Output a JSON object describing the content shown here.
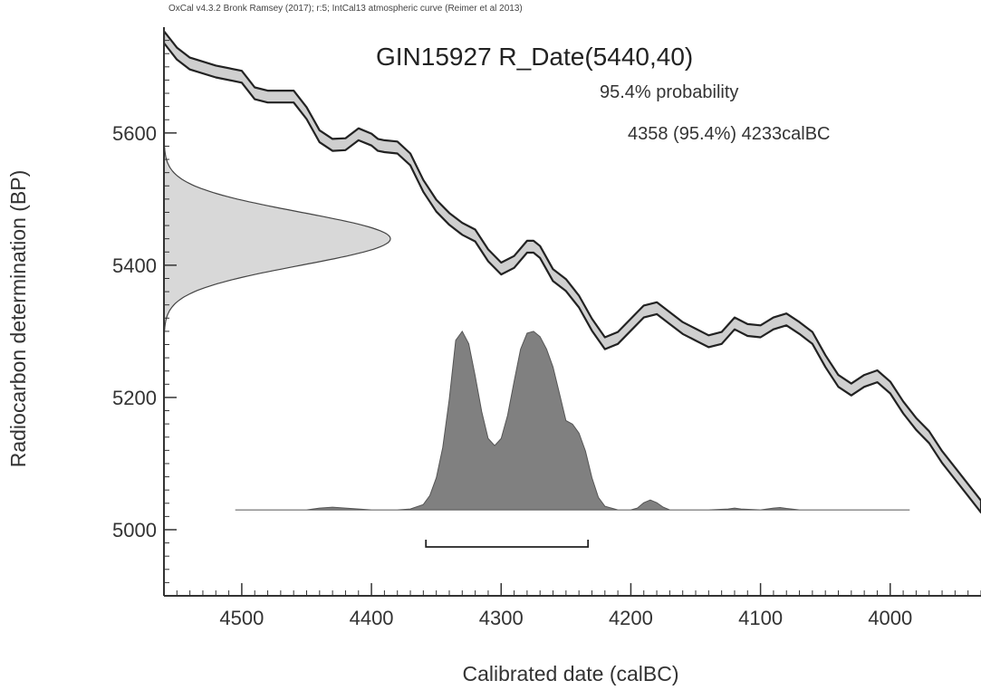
{
  "header": {
    "software_line": "OxCal v4.3.2 Bronk Ramsey (2017); r:5; IntCal13 atmospheric curve (Reimer et al 2013)"
  },
  "chart_data": {
    "type": "area",
    "title": "GIN15927 R_Date(5440,40)",
    "probability_label": "95.4% probability",
    "range_text": "4358 (95.4%) 4233calBC",
    "xlabel": "Calibrated date (calBC)",
    "ylabel": "Radiocarbon determination (BP)",
    "x_reversed": true,
    "xlim": [
      4560,
      3930
    ],
    "ylim": [
      4900,
      5760
    ],
    "x_ticks": [
      "4500",
      "4400",
      "4300",
      "4200",
      "4100",
      "4000"
    ],
    "y_ticks": [
      "5000",
      "5200",
      "5400",
      "5600"
    ],
    "calibration_curve": {
      "x": [
        4560,
        4550,
        4540,
        4520,
        4500,
        4490,
        4480,
        4460,
        4450,
        4440,
        4430,
        4420,
        4410,
        4400,
        4395,
        4390,
        4380,
        4370,
        4360,
        4350,
        4340,
        4330,
        4320,
        4310,
        4300,
        4290,
        4280,
        4275,
        4270,
        4260,
        4250,
        4240,
        4230,
        4220,
        4210,
        4200,
        4190,
        4180,
        4170,
        4160,
        4150,
        4140,
        4130,
        4120,
        4110,
        4100,
        4090,
        4080,
        4070,
        4060,
        4050,
        4040,
        4030,
        4020,
        4010,
        4000,
        3990,
        3980,
        3970,
        3960,
        3950,
        3940,
        3930
      ],
      "y": [
        5745,
        5720,
        5705,
        5693,
        5685,
        5660,
        5655,
        5655,
        5630,
        5595,
        5582,
        5583,
        5598,
        5590,
        5582,
        5580,
        5578,
        5560,
        5520,
        5490,
        5470,
        5455,
        5445,
        5415,
        5395,
        5405,
        5428,
        5428,
        5420,
        5385,
        5370,
        5345,
        5310,
        5282,
        5290,
        5310,
        5330,
        5335,
        5320,
        5305,
        5295,
        5285,
        5290,
        5312,
        5302,
        5300,
        5312,
        5318,
        5305,
        5290,
        5255,
        5225,
        5212,
        5225,
        5232,
        5215,
        5185,
        5160,
        5140,
        5110,
        5085,
        5060,
        5035
      ],
      "half_width": 9
    },
    "radiocarbon_distribution": {
      "mean": 5440,
      "sd": 40
    },
    "calibrated_distribution": {
      "x": [
        4505,
        4480,
        4450,
        4440,
        4430,
        4420,
        4400,
        4380,
        4370,
        4360,
        4355,
        4350,
        4345,
        4340,
        4335,
        4330,
        4325,
        4320,
        4315,
        4310,
        4305,
        4300,
        4295,
        4290,
        4285,
        4280,
        4275,
        4270,
        4265,
        4260,
        4255,
        4250,
        4245,
        4240,
        4235,
        4230,
        4225,
        4220,
        4210,
        4200,
        4195,
        4190,
        4185,
        4180,
        4175,
        4170,
        4160,
        4140,
        4125,
        4120,
        4115,
        4100,
        4090,
        4085,
        4080,
        4070,
        4050,
        4020,
        3985
      ],
      "p": [
        0,
        0,
        0,
        0.01,
        0.015,
        0.01,
        0,
        0,
        0.005,
        0.03,
        0.08,
        0.18,
        0.35,
        0.62,
        0.95,
        1.0,
        0.93,
        0.75,
        0.55,
        0.4,
        0.36,
        0.4,
        0.53,
        0.72,
        0.9,
        0.99,
        1.0,
        0.97,
        0.9,
        0.8,
        0.65,
        0.5,
        0.48,
        0.43,
        0.33,
        0.18,
        0.07,
        0.02,
        0,
        0,
        0.01,
        0.04,
        0.055,
        0.04,
        0.015,
        0,
        0,
        0,
        0.005,
        0.01,
        0.005,
        0,
        0.01,
        0.013,
        0.008,
        0,
        0,
        0,
        0
      ],
      "peak_height_bp": 270
    },
    "range_bar": {
      "from": 4358,
      "to": 4233
    },
    "colors": {
      "curve_fill": "#cfcfcf",
      "curve_stroke": "#222222",
      "calibrated_fill": "#808080",
      "radiocarbon_fill": "#d8d8d8",
      "axis": "#333333"
    }
  }
}
